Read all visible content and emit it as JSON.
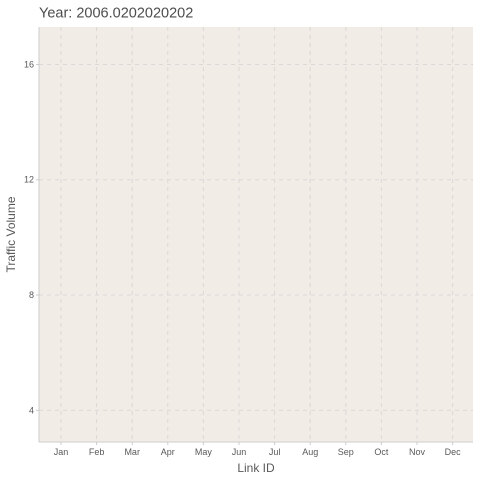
{
  "chart_data": {
    "type": "line",
    "title": "Year: 2006.0202020202",
    "xlabel": "Link ID",
    "ylabel": "Traffic Volume",
    "categories": [
      "Jan",
      "Feb",
      "Mar",
      "Apr",
      "May",
      "Jun",
      "Jul",
      "Aug",
      "Sep",
      "Oct",
      "Nov",
      "Dec"
    ],
    "y_ticks": [
      "4",
      "8",
      "12",
      "16"
    ],
    "y_tick_values": [
      4,
      8,
      12,
      16
    ],
    "ylim": [
      2.9,
      17.3
    ],
    "series": [],
    "grid": true,
    "colors": {
      "panel_background": "#f2ece6",
      "grid_line": "#d9d9d9",
      "axis_line": "#cccccc",
      "text": "#4d4d4d"
    }
  }
}
